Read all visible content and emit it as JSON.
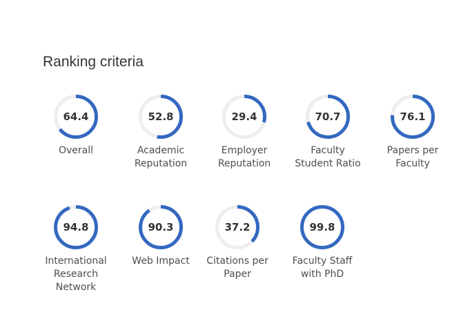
{
  "section": {
    "title": "Ranking criteria"
  },
  "accent_color": "#3468c0",
  "track_color": "#eeeeee",
  "criteria": [
    {
      "value": "64.4",
      "score": 64.4,
      "label": "Overall"
    },
    {
      "value": "52.8",
      "score": 52.8,
      "label": "Academic\nReputation"
    },
    {
      "value": "29.4",
      "score": 29.4,
      "label": "Employer\nReputation"
    },
    {
      "value": "70.7",
      "score": 70.7,
      "label": "Faculty\nStudent Ratio"
    },
    {
      "value": "76.1",
      "score": 76.1,
      "label": "Papers per\nFaculty"
    },
    {
      "value": "94.8",
      "score": 94.8,
      "label": "International\nResearch\nNetwork"
    },
    {
      "value": "90.3",
      "score": 90.3,
      "label": "Web Impact"
    },
    {
      "value": "37.2",
      "score": 37.2,
      "label": "Citations per\nPaper"
    },
    {
      "value": "99.8",
      "score": 99.8,
      "label": "Faculty Staff\nwith PhD"
    }
  ]
}
